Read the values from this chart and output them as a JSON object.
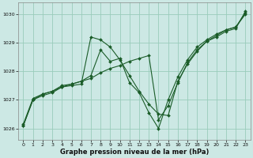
{
  "background_color": "#cce8e4",
  "grid_color": "#99ccbb",
  "line_color": "#1a5c28",
  "marker_color": "#1a5c28",
  "xlabel": "Graphe pression niveau de la mer (hPa)",
  "xlim": [
    -0.5,
    23.5
  ],
  "ylim": [
    1025.6,
    1030.4
  ],
  "yticks": [
    1026,
    1027,
    1028,
    1029,
    1030
  ],
  "xticks": [
    0,
    1,
    2,
    3,
    4,
    5,
    6,
    7,
    8,
    9,
    10,
    11,
    12,
    13,
    14,
    15,
    16,
    17,
    18,
    19,
    20,
    21,
    22,
    23
  ],
  "line1_x": [
    0,
    1,
    2,
    3,
    4,
    5,
    6,
    7,
    8,
    9,
    10,
    11,
    12,
    13,
    14,
    15,
    16,
    17,
    18,
    19,
    20,
    21,
    22,
    23
  ],
  "line1_y": [
    1026.1,
    1027.0,
    1027.15,
    1027.25,
    1027.45,
    1027.5,
    1027.55,
    1029.2,
    1029.1,
    1028.85,
    1028.4,
    1027.85,
    1027.3,
    1026.85,
    1026.5,
    1026.45,
    1027.65,
    1028.25,
    1028.7,
    1029.05,
    1029.2,
    1029.4,
    1029.5,
    1030.1
  ],
  "line2_x": [
    0,
    1,
    2,
    3,
    4,
    5,
    6,
    7,
    8,
    9,
    10,
    11,
    12,
    13,
    14,
    15,
    16,
    17,
    18,
    19,
    20,
    21,
    22,
    23
  ],
  "line2_y": [
    1026.15,
    1027.05,
    1027.2,
    1027.3,
    1027.5,
    1027.55,
    1027.65,
    1027.85,
    1028.75,
    1028.35,
    1028.45,
    1027.6,
    1027.25,
    1026.55,
    1026.0,
    1027.0,
    1027.8,
    1028.4,
    1028.85,
    1029.1,
    1029.3,
    1029.45,
    1029.55,
    1030.05
  ],
  "line3_x": [
    0,
    1,
    2,
    3,
    4,
    5,
    6,
    7,
    8,
    9,
    10,
    11,
    12,
    13,
    14,
    15,
    16,
    17,
    18,
    19,
    20,
    21,
    22,
    23
  ],
  "line3_y": [
    1026.1,
    1027.0,
    1027.2,
    1027.3,
    1027.45,
    1027.55,
    1027.65,
    1027.75,
    1027.95,
    1028.1,
    1028.2,
    1028.35,
    1028.45,
    1028.55,
    1026.3,
    1026.8,
    1027.6,
    1028.3,
    1028.75,
    1029.05,
    1029.25,
    1029.45,
    1029.55,
    1030.0
  ]
}
